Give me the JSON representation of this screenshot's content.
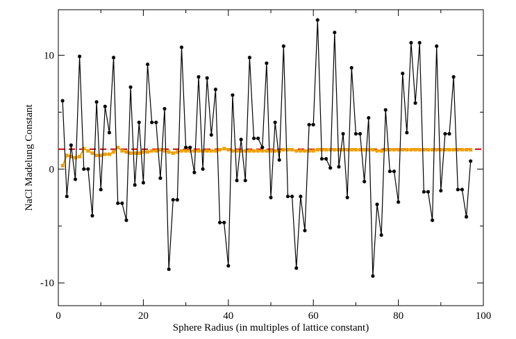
{
  "chart_data": {
    "type": "line",
    "title": "",
    "xlabel": "Sphere Radius (in multiples of lattice constant)",
    "ylabel": "NaCl Madelung Constant",
    "xlim": [
      0,
      100
    ],
    "ylim": [
      -12,
      14
    ],
    "xticks": [
      0,
      20,
      40,
      60,
      80,
      100
    ],
    "yticks": [
      -10,
      0,
      10
    ],
    "xtick_labels": [
      "0",
      "20",
      "40",
      "60",
      "80",
      "100"
    ],
    "ytick_labels": [
      "-10",
      "0",
      "10"
    ],
    "grid": false,
    "legend": "none",
    "reference_line": {
      "value": 1.748,
      "color": "#cc0000",
      "style": "dashed"
    },
    "series": [
      {
        "color": "#000000",
        "marker": "star",
        "x": [
          1,
          2,
          3,
          4,
          5,
          6,
          7,
          8,
          9,
          10,
          11,
          12,
          13,
          14,
          15,
          16,
          17,
          18,
          19,
          20,
          21,
          22,
          23,
          24,
          25,
          26,
          27,
          28,
          29,
          30,
          31,
          32,
          33,
          34,
          35,
          36,
          37,
          38,
          39,
          40,
          41,
          42,
          43,
          44,
          45,
          46,
          47,
          48,
          49,
          50,
          51,
          52,
          53,
          54,
          55,
          56,
          57,
          58,
          59,
          60,
          61,
          62,
          63,
          64,
          65,
          66,
          67,
          68,
          69,
          70,
          71,
          72,
          73,
          74,
          75,
          76,
          77,
          78,
          79,
          80,
          81,
          82,
          83,
          84,
          85,
          86,
          87,
          88,
          89,
          90,
          91,
          92,
          93,
          94,
          95,
          96,
          97
        ],
        "y": [
          6.0,
          -2.4,
          2.1,
          -0.9,
          9.9,
          0.0,
          0.0,
          -4.1,
          5.9,
          -1.8,
          5.5,
          3.2,
          9.8,
          -3.0,
          -3.0,
          -4.5,
          7.2,
          -1.4,
          4.1,
          -1.2,
          9.2,
          4.1,
          4.1,
          -0.8,
          5.3,
          -8.8,
          -2.7,
          -2.7,
          10.7,
          1.9,
          1.9,
          -0.3,
          8.1,
          0.0,
          8.0,
          3.0,
          7.0,
          -4.7,
          -4.7,
          -8.5,
          6.5,
          -1.0,
          2.6,
          -1.0,
          9.8,
          2.7,
          2.7,
          1.9,
          9.3,
          -2.5,
          4.1,
          0.8,
          10.8,
          -2.4,
          -2.4,
          -8.7,
          -2.4,
          -5.4,
          3.9,
          3.9,
          13.1,
          0.9,
          0.9,
          0.1,
          12.0,
          0.2,
          3.1,
          -2.5,
          8.9,
          3.1,
          3.1,
          -1.1,
          4.5,
          -9.4,
          -3.1,
          -5.8,
          5.2,
          -0.2,
          -0.2,
          -2.9,
          8.4,
          3.2,
          11.1,
          5.8,
          11.1,
          -2.0,
          -2.0,
          -4.5,
          10.8,
          -1.9,
          3.1,
          3.1,
          8.1,
          -1.8,
          -1.8,
          -4.2,
          0.7
        ]
      },
      {
        "color": "#f0a000",
        "marker": "square",
        "x": [
          1,
          2,
          3,
          4,
          5,
          6,
          7,
          8,
          9,
          10,
          11,
          12,
          13,
          14,
          15,
          16,
          17,
          18,
          19,
          20,
          21,
          22,
          23,
          24,
          25,
          26,
          27,
          28,
          29,
          30,
          31,
          32,
          33,
          34,
          35,
          36,
          37,
          38,
          39,
          40,
          41,
          42,
          43,
          44,
          45,
          46,
          47,
          48,
          49,
          50,
          51,
          52,
          53,
          54,
          55,
          56,
          57,
          58,
          59,
          60,
          61,
          62,
          63,
          64,
          65,
          66,
          67,
          68,
          69,
          70,
          71,
          72,
          73,
          74,
          75,
          76,
          77,
          78,
          79,
          80,
          81,
          82,
          83,
          84,
          85,
          86,
          87,
          88,
          89,
          90,
          91,
          92,
          93,
          94,
          95,
          96,
          97
        ],
        "y": [
          0.3,
          1.2,
          1.1,
          1.0,
          1.1,
          1.8,
          1.6,
          1.4,
          1.2,
          1.2,
          1.3,
          1.3,
          1.5,
          1.9,
          1.6,
          1.5,
          1.4,
          1.4,
          1.4,
          1.5,
          1.5,
          1.6,
          1.6,
          1.7,
          1.6,
          1.5,
          1.4,
          1.5,
          1.6,
          1.6,
          1.6,
          1.6,
          1.6,
          1.6,
          1.6,
          1.6,
          1.6,
          1.7,
          1.8,
          1.7,
          1.6,
          1.6,
          1.6,
          1.6,
          1.6,
          1.6,
          1.6,
          1.6,
          1.6,
          1.6,
          1.6,
          1.6,
          1.7,
          1.7,
          1.7,
          1.6,
          1.6,
          1.6,
          1.6,
          1.6,
          1.7,
          1.7,
          1.7,
          1.7,
          1.7,
          1.7,
          1.7,
          1.7,
          1.7,
          1.7,
          1.7,
          1.7,
          1.7,
          1.7,
          1.6,
          1.6,
          1.7,
          1.7,
          1.7,
          1.7,
          1.7,
          1.7,
          1.7,
          1.7,
          1.7,
          1.7,
          1.7,
          1.7,
          1.7,
          1.7,
          1.7,
          1.7,
          1.7,
          1.7,
          1.7,
          1.7,
          1.7
        ]
      }
    ]
  }
}
